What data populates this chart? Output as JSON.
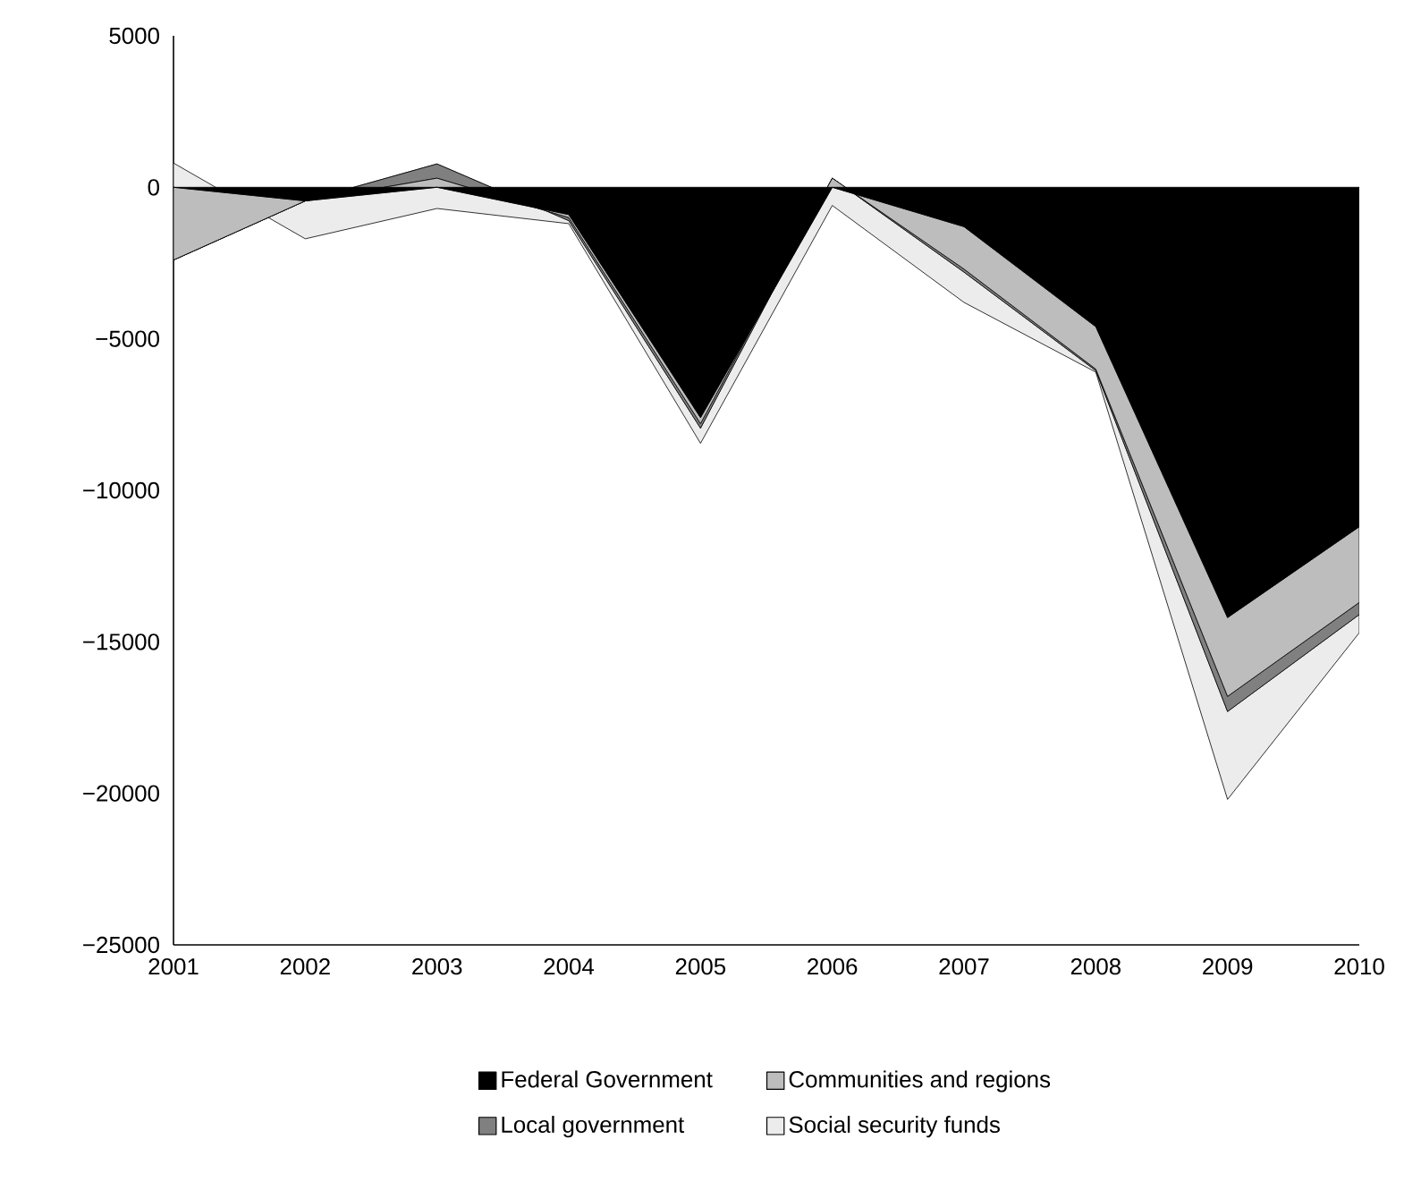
{
  "chart_data": {
    "type": "area",
    "stacked": true,
    "x": [
      2001,
      2002,
      2003,
      2004,
      2005,
      2006,
      2007,
      2008,
      2009,
      2010
    ],
    "series": [
      {
        "name": "Federal Government",
        "color": "#000000",
        "values": [
          0,
          -450,
          0,
          -900,
          -7600,
          0,
          -1300,
          -4600,
          -14200,
          -11200
        ]
      },
      {
        "name": "Communities and regions",
        "color": "#bdbdbd",
        "values": [
          -2400,
          0,
          300,
          -100,
          -200,
          300,
          -1400,
          -1400,
          -2600,
          -2500
        ]
      },
      {
        "name": "Local government",
        "color": "#808080",
        "values": [
          0,
          0,
          470,
          -100,
          -150,
          0,
          -100,
          -50,
          -500,
          -400
        ]
      },
      {
        "name": "Social security funds",
        "color": "#ececec",
        "values": [
          3200,
          -1250,
          -1470,
          -100,
          -500,
          -900,
          -1000,
          -50,
          -2900,
          -600
        ]
      }
    ],
    "xlim": [
      2001,
      2010
    ],
    "xticks": [
      2001,
      2002,
      2003,
      2004,
      2005,
      2006,
      2007,
      2008,
      2009,
      2010
    ],
    "ylim": [
      -25000,
      5000
    ],
    "yticks": [
      {
        "value": -25000,
        "label": "−25000"
      },
      {
        "value": -20000,
        "label": "−20000"
      },
      {
        "value": -15000,
        "label": "−15000"
      },
      {
        "value": -10000,
        "label": "−10000"
      },
      {
        "value": -5000,
        "label": "−5000"
      },
      0,
      5000
    ],
    "grid": false,
    "legend": "bottom"
  }
}
